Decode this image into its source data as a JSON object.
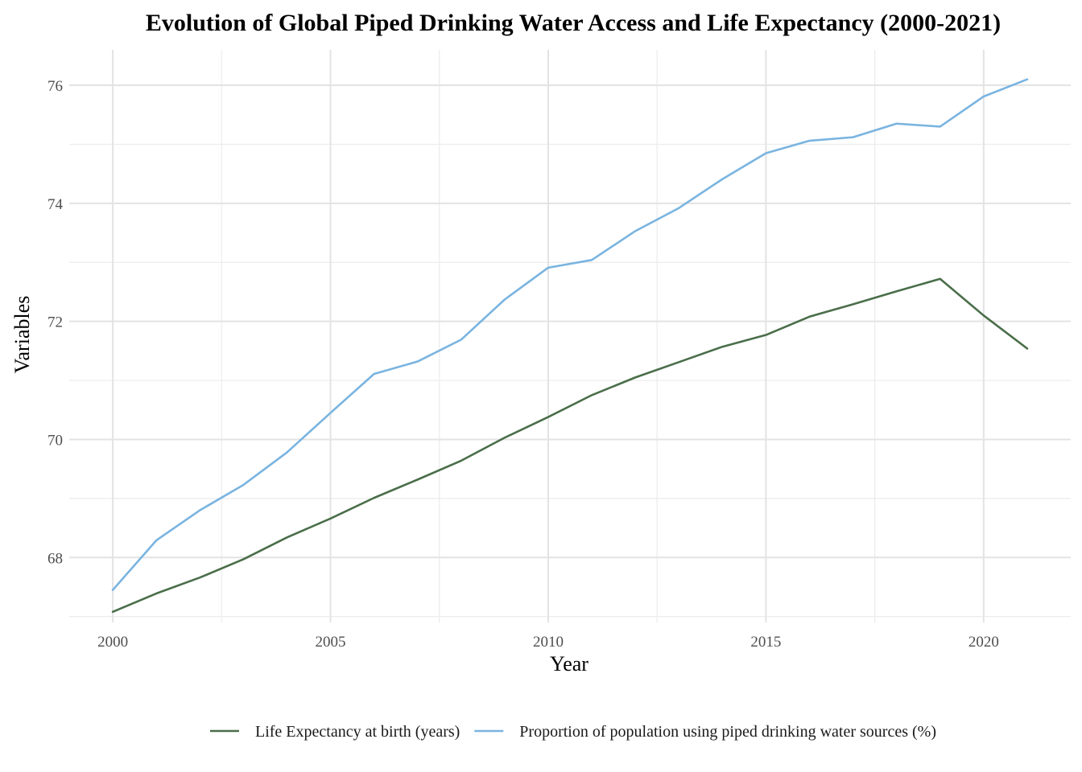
{
  "chart_data": {
    "type": "line",
    "title": "Evolution of Global Piped Drinking Water Access and Life Expectancy (2000-2021)",
    "xlabel": "Year",
    "ylabel": "Variables",
    "x": [
      2000,
      2001,
      2002,
      2003,
      2004,
      2005,
      2006,
      2007,
      2008,
      2009,
      2010,
      2011,
      2012,
      2013,
      2014,
      2015,
      2016,
      2017,
      2018,
      2019,
      2020,
      2021
    ],
    "x_ticks": [
      "2000",
      "2005",
      "2010",
      "2015",
      "2020"
    ],
    "y_ticks": [
      "68",
      "70",
      "72",
      "74",
      "76"
    ],
    "xlim": [
      1999,
      2022
    ],
    "ylim": [
      66.9,
      76.6
    ],
    "grid": true,
    "legend_position": "bottom",
    "series": [
      {
        "name": "Life Expectancy at birth (years)",
        "color": "#4a6e4a",
        "values": [
          67.08,
          67.39,
          67.66,
          67.97,
          68.34,
          68.66,
          69.01,
          69.32,
          69.64,
          70.03,
          70.38,
          70.75,
          71.05,
          71.31,
          71.57,
          71.77,
          72.08,
          72.29,
          72.51,
          72.72,
          72.1,
          71.54
        ]
      },
      {
        "name": "Proportion of population using piped drinking water sources (%)",
        "color": "#7ab4e0",
        "values": [
          67.45,
          68.29,
          68.8,
          69.23,
          69.78,
          70.45,
          71.11,
          71.32,
          71.69,
          72.37,
          72.91,
          73.04,
          73.53,
          73.92,
          74.41,
          74.85,
          75.06,
          75.12,
          75.35,
          75.3,
          75.81,
          76.1
        ]
      }
    ]
  }
}
